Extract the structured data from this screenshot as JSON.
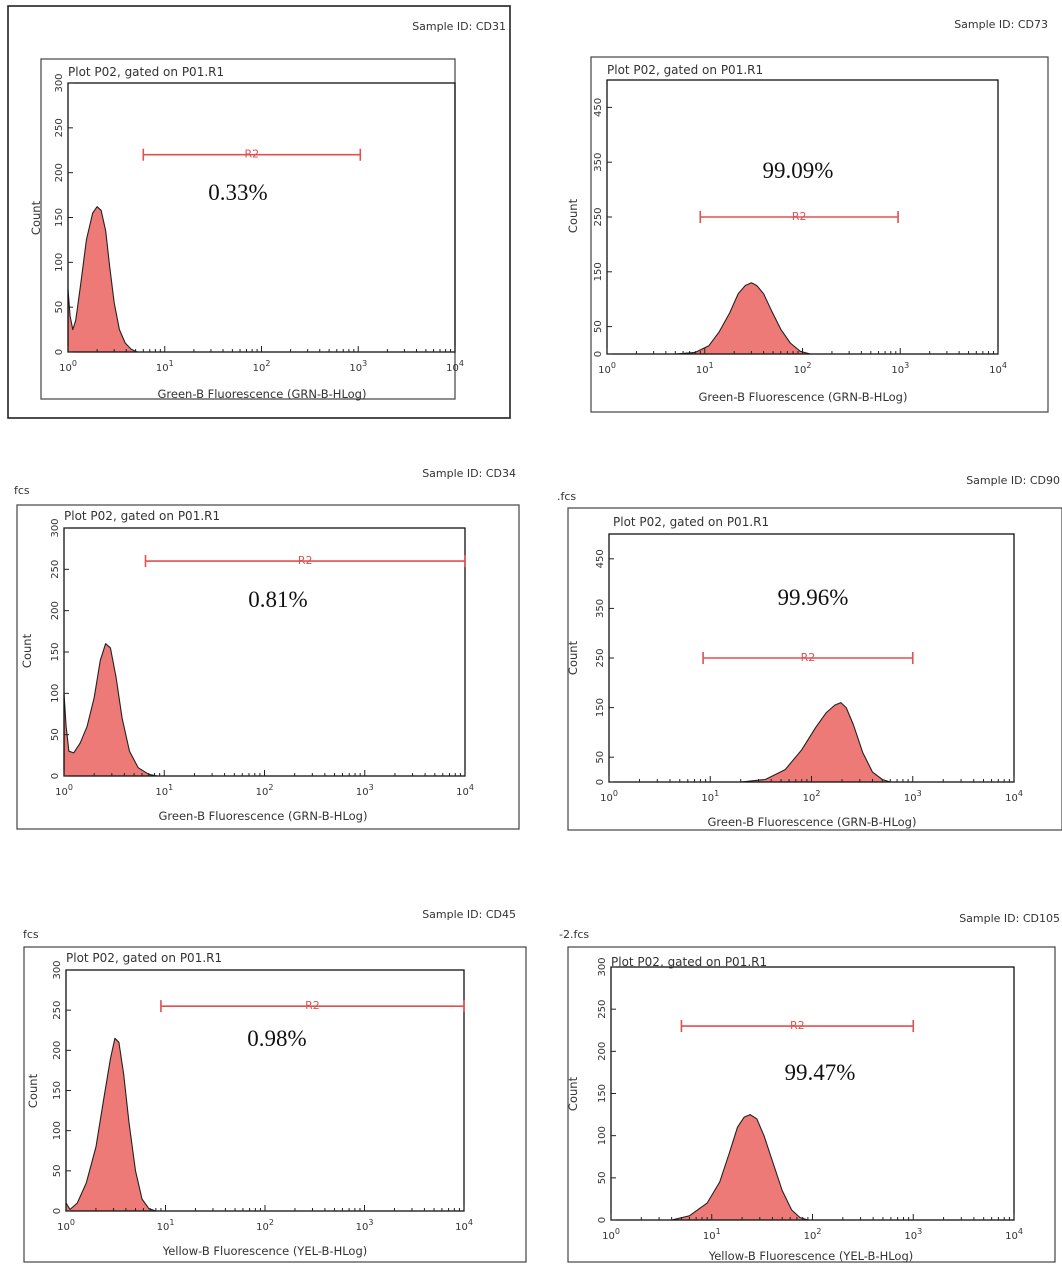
{
  "chart_data": [
    {
      "type": "histogram",
      "sample_id": "Sample ID: CD31",
      "file_label": "",
      "title": "Plot P02, gated on P01.R1",
      "xlabel": "Green-B Fluorescence (GRN-B-HLog)",
      "ylabel": "Count",
      "x_scale": "log",
      "xlim": [
        1,
        10000
      ],
      "x_ticks": [
        1,
        10,
        100,
        1000,
        10000
      ],
      "ylim": [
        0,
        300
      ],
      "y_ticks": [
        0,
        50,
        100,
        150,
        200,
        250,
        300
      ],
      "y_tick_rotated": true,
      "gate": {
        "name": "R2",
        "x_range": [
          6,
          1050
        ],
        "y": 220
      },
      "percent": "0.33%",
      "histogram": {
        "x": [
          1.0,
          1.05,
          1.12,
          1.2,
          1.35,
          1.55,
          1.8,
          2.0,
          2.2,
          2.45,
          2.7,
          3.0,
          3.4,
          3.9,
          4.5,
          5.2
        ],
        "y": [
          70,
          40,
          25,
          35,
          75,
          125,
          155,
          162,
          158,
          135,
          95,
          55,
          25,
          10,
          3,
          0
        ]
      }
    },
    {
      "type": "histogram",
      "sample_id": "Sample ID: CD73",
      "file_label": "",
      "title": "Plot P02, gated on P01.R1",
      "xlabel": "Green-B Fluorescence (GRN-B-HLog)",
      "ylabel": "Count",
      "x_scale": "log",
      "xlim": [
        1,
        10000
      ],
      "x_ticks": [
        1,
        10,
        100,
        1000,
        10000
      ],
      "ylim": [
        0,
        500
      ],
      "y_ticks": [
        0,
        50,
        150,
        250,
        350,
        450
      ],
      "y_tick_rotated": true,
      "gate": {
        "name": "R2",
        "x_range": [
          9,
          950
        ],
        "y": 250
      },
      "percent": "99.09%",
      "histogram": {
        "x": [
          5,
          8,
          11,
          14,
          18,
          22,
          26,
          30,
          34,
          40,
          48,
          60,
          75,
          95,
          120
        ],
        "y": [
          0,
          3,
          15,
          40,
          75,
          110,
          125,
          130,
          125,
          110,
          80,
          45,
          20,
          5,
          0
        ]
      }
    },
    {
      "type": "histogram",
      "sample_id": "Sample ID: CD34",
      "file_label": "fcs",
      "title": "Plot P02, gated on P01.R1",
      "xlabel": "Green-B Fluorescence (GRN-B-HLog)",
      "ylabel": "Count",
      "x_scale": "log",
      "xlim": [
        1,
        10000
      ],
      "x_ticks": [
        1,
        10,
        100,
        1000,
        10000
      ],
      "ylim": [
        0,
        300
      ],
      "y_ticks": [
        0,
        50,
        100,
        150,
        200,
        250,
        300
      ],
      "y_tick_rotated": true,
      "gate": {
        "name": "R2",
        "x_range": [
          6.5,
          10000
        ],
        "y": 260
      },
      "percent": "0.81%",
      "histogram": {
        "x": [
          1.0,
          1.05,
          1.12,
          1.25,
          1.45,
          1.7,
          2.0,
          2.3,
          2.6,
          2.9,
          3.3,
          3.8,
          4.5,
          5.5,
          7.0,
          8.5
        ],
        "y": [
          100,
          60,
          30,
          28,
          40,
          60,
          95,
          140,
          160,
          155,
          120,
          70,
          30,
          10,
          2,
          0
        ]
      }
    },
    {
      "type": "histogram",
      "sample_id": "Sample ID:  CD90",
      "file_label": ".fcs",
      "title": "Plot P02, gated on P01.R1",
      "xlabel": "Green-B Fluorescence (GRN-B-HLog)",
      "ylabel": "Count",
      "x_scale": "log",
      "xlim": [
        1,
        10000
      ],
      "x_ticks": [
        1,
        10,
        100,
        1000,
        10000
      ],
      "ylim": [
        0,
        500
      ],
      "y_ticks": [
        0,
        50,
        150,
        250,
        350,
        450
      ],
      "y_tick_rotated": true,
      "gate": {
        "name": "R2",
        "x_range": [
          8.5,
          1000
        ],
        "y": 250
      },
      "percent": "99.96%",
      "histogram": {
        "x": [
          20,
          35,
          55,
          80,
          110,
          140,
          170,
          195,
          220,
          260,
          320,
          400,
          500,
          600
        ],
        "y": [
          0,
          5,
          25,
          65,
          110,
          140,
          155,
          160,
          150,
          115,
          60,
          20,
          5,
          0
        ]
      }
    },
    {
      "type": "histogram",
      "sample_id": "Sample ID: CD45",
      "file_label": "fcs",
      "title": "Plot P02, gated on P01.R1",
      "xlabel": "Yellow-B Fluorescence (YEL-B-HLog)",
      "ylabel": "Count",
      "x_scale": "log",
      "xlim": [
        1,
        10000
      ],
      "x_ticks": [
        1,
        10,
        100,
        1000,
        10000
      ],
      "ylim": [
        0,
        300
      ],
      "y_ticks": [
        0,
        50,
        100,
        150,
        200,
        250,
        300
      ],
      "y_tick_rotated": true,
      "gate": {
        "name": "R2",
        "x_range": [
          9,
          10000
        ],
        "y": 255
      },
      "percent": "0.98%",
      "histogram": {
        "x": [
          1.0,
          1.1,
          1.3,
          1.6,
          2.0,
          2.4,
          2.8,
          3.1,
          3.4,
          3.8,
          4.3,
          5.0,
          5.8,
          6.8,
          8.0
        ],
        "y": [
          10,
          2,
          10,
          35,
          80,
          140,
          190,
          215,
          210,
          170,
          110,
          50,
          15,
          3,
          0
        ]
      }
    },
    {
      "type": "histogram",
      "sample_id": "Sample ID: CD105",
      "file_label": "-2.fcs",
      "title": "Plot P02, gated on P01.R1",
      "xlabel": "Yellow-B Fluorescence (YEL-B-HLog)",
      "ylabel": "Count",
      "x_scale": "log",
      "xlim": [
        1,
        10000
      ],
      "x_ticks": [
        1,
        10,
        100,
        1000,
        10000
      ],
      "ylim": [
        0,
        300
      ],
      "y_ticks": [
        0,
        50,
        100,
        150,
        200,
        250,
        300
      ],
      "y_tick_rotated": true,
      "gate": {
        "name": "R2",
        "x_range": [
          5,
          1000
        ],
        "y": 230
      },
      "percent": "99.47%",
      "histogram": {
        "x": [
          4,
          6,
          9,
          12,
          15,
          18,
          21,
          24,
          28,
          33,
          40,
          50,
          62,
          75,
          90
        ],
        "y": [
          0,
          5,
          20,
          45,
          80,
          110,
          122,
          125,
          120,
          100,
          70,
          35,
          12,
          3,
          0
        ]
      }
    }
  ],
  "colors": {
    "fill": "#ee7a78",
    "gate": "#e05050",
    "frame": "#222222"
  }
}
